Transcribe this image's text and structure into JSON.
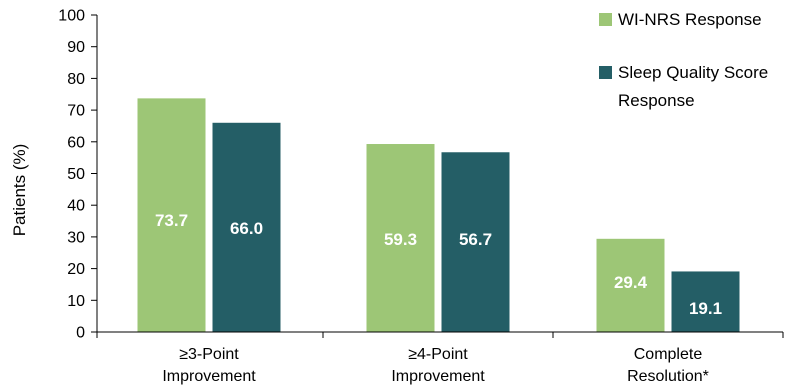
{
  "chart_data": {
    "type": "bar",
    "title": "",
    "xlabel": "",
    "ylabel": "Patients (%)",
    "ylim": [
      0,
      100
    ],
    "yticks": [
      0,
      10,
      20,
      30,
      40,
      50,
      60,
      70,
      80,
      90,
      100
    ],
    "grid": false,
    "legend_position": "top-right",
    "categories": [
      [
        "≥3-Point",
        "Improvement"
      ],
      [
        "≥4-Point",
        "Improvement"
      ],
      [
        "Complete",
        "Resolution*"
      ]
    ],
    "series": [
      {
        "name": "WI-NRS Response",
        "color": "#9dc676",
        "values": [
          73.7,
          59.3,
          29.4
        ],
        "labels": [
          "73.7",
          "59.3",
          "29.4"
        ]
      },
      {
        "name": "Sleep Quality Score Response",
        "color": "#245e66",
        "values": [
          66.0,
          56.7,
          19.1
        ],
        "labels": [
          "66.0",
          "56.7",
          "19.1"
        ]
      }
    ],
    "legend": [
      {
        "lines": [
          "WI-NRS Response"
        ],
        "color": "#9dc676"
      },
      {
        "lines": [
          "Sleep Quality Score",
          "Response"
        ],
        "color": "#245e66"
      }
    ]
  }
}
